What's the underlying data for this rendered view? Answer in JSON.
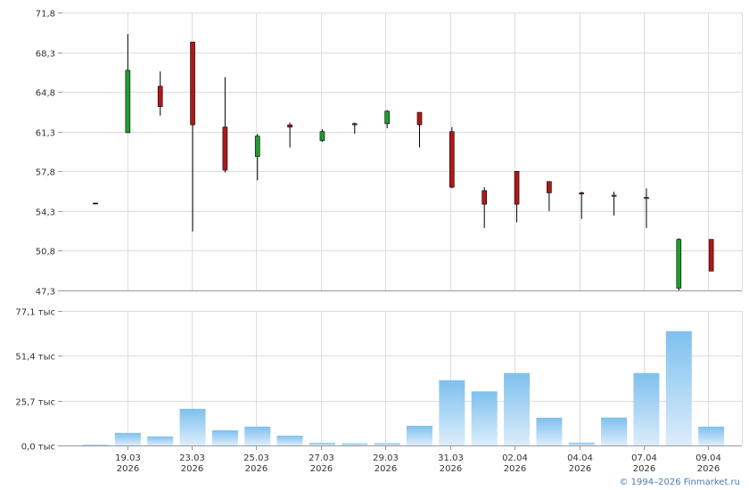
{
  "copyright": "© 1994–2026 Finmarket.ru",
  "chart_data": [
    {
      "type": "candlestick",
      "ylim": [
        47.3,
        71.8
      ],
      "y_ticks": [
        "71,8",
        "68,3",
        "64,8",
        "61,3",
        "57,8",
        "54,3",
        "50,8",
        "47,3"
      ],
      "grid": true,
      "colors": {
        "up": "#1e9e2e",
        "down": "#b01818",
        "wick": "#000000"
      },
      "candles": [
        {
          "date": "2026-03-17",
          "open": 55.0,
          "high": 55.0,
          "low": 55.0,
          "close": 55.0
        },
        {
          "date": "2026-03-19",
          "open": 61.2,
          "high": 69.9,
          "low": 61.2,
          "close": 66.7
        },
        {
          "date": "2026-03-20",
          "open": 65.3,
          "high": 66.6,
          "low": 62.7,
          "close": 63.5
        },
        {
          "date": "2026-03-23",
          "open": 69.2,
          "high": 69.2,
          "low": 52.5,
          "close": 61.9
        },
        {
          "date": "2026-03-24",
          "open": 61.7,
          "high": 66.1,
          "low": 57.7,
          "close": 57.9
        },
        {
          "date": "2026-03-25",
          "open": 59.1,
          "high": 61.1,
          "low": 57.0,
          "close": 60.9
        },
        {
          "date": "2026-03-26",
          "open": 61.9,
          "high": 62.1,
          "low": 59.9,
          "close": 61.7
        },
        {
          "date": "2026-03-27",
          "open": 60.5,
          "high": 61.5,
          "low": 60.4,
          "close": 61.3
        },
        {
          "date": "2026-03-28",
          "open": 62.0,
          "high": 62.1,
          "low": 61.1,
          "close": 61.9
        },
        {
          "date": "2026-03-29",
          "open": 62.0,
          "high": 63.2,
          "low": 61.6,
          "close": 63.1
        },
        {
          "date": "2026-03-30",
          "open": 63.0,
          "high": 63.0,
          "low": 59.9,
          "close": 61.9
        },
        {
          "date": "2026-03-31",
          "open": 61.3,
          "high": 61.7,
          "low": 56.3,
          "close": 56.4
        },
        {
          "date": "2026-04-01",
          "open": 56.1,
          "high": 56.4,
          "low": 52.8,
          "close": 54.9
        },
        {
          "date": "2026-04-02",
          "open": 57.8,
          "high": 57.8,
          "low": 53.3,
          "close": 54.9
        },
        {
          "date": "2026-04-03",
          "open": 56.9,
          "high": 56.9,
          "low": 54.3,
          "close": 55.9
        },
        {
          "date": "2026-04-04",
          "open": 55.9,
          "high": 56.0,
          "low": 53.6,
          "close": 55.8
        },
        {
          "date": "2026-04-05",
          "open": 55.6,
          "high": 56.0,
          "low": 53.9,
          "close": 55.7
        },
        {
          "date": "2026-04-07",
          "open": 55.4,
          "high": 56.3,
          "low": 52.8,
          "close": 55.5
        },
        {
          "date": "2026-04-08",
          "open": 47.5,
          "high": 51.9,
          "low": 47.3,
          "close": 51.8
        },
        {
          "date": "2026-04-09",
          "open": 51.8,
          "high": 51.8,
          "low": 49.0,
          "close": 49.0
        }
      ]
    },
    {
      "type": "bar",
      "ylim": [
        0,
        77.1
      ],
      "y_ticks": [
        "77,1 тыс",
        "51,4 тыс",
        "25,7 тыс",
        "0,0 тыс"
      ],
      "grid": true,
      "colors": {
        "bar_top": "#7ec0ee",
        "bar_bottom": "#dcedfb"
      },
      "x_tick_labels": [
        [
          "19.03",
          "2026"
        ],
        [
          "23.03",
          "2026"
        ],
        [
          "25.03",
          "2026"
        ],
        [
          "27.03",
          "2026"
        ],
        [
          "29.03",
          "2026"
        ],
        [
          "31.03",
          "2026"
        ],
        [
          "02.04",
          "2026"
        ],
        [
          "04.04",
          "2026"
        ],
        [
          "07.04",
          "2026"
        ],
        [
          "09.04",
          "2026"
        ]
      ],
      "volume_unit": "тыс",
      "values": [
        0.5,
        7.2,
        5.2,
        21.0,
        8.7,
        10.8,
        5.6,
        1.5,
        1.2,
        1.3,
        11.3,
        37.4,
        31.0,
        41.5,
        15.9,
        1.6,
        16.0,
        41.5,
        65.5,
        10.8
      ]
    }
  ]
}
